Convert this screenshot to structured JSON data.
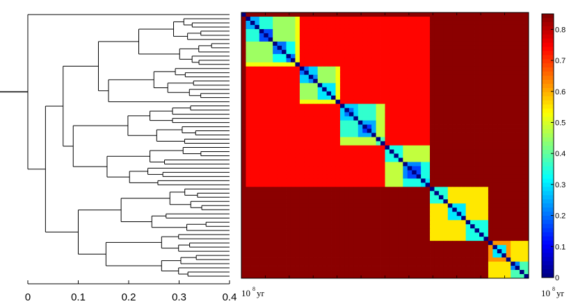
{
  "chart_data": [
    {
      "type": "dendrogram",
      "orientation": "root-left",
      "xlim": [
        0,
        0.4
      ],
      "xticks": [
        "0",
        "0.1",
        "0.2",
        "0.3",
        "0.4"
      ],
      "unit": {
        "base": "10",
        "exp": "8",
        "suffix": "yr"
      },
      "leaf_count": 64,
      "line_color": "#000000"
    },
    {
      "type": "heatmap",
      "size": 64,
      "colormap": "jet",
      "clim": [
        0,
        0.85
      ],
      "diagonal_value": 0.0,
      "blocks": [
        {
          "range": [
            0,
            1
          ],
          "value": 0.84
        },
        {
          "range": [
            1,
            42
          ],
          "value": 0.74
        },
        {
          "range": [
            1,
            22
          ],
          "value": 0.74
        },
        {
          "range": [
            1,
            13
          ],
          "value": 0.6
        },
        {
          "range": [
            13,
            22
          ],
          "value": 0.66
        },
        {
          "range": [
            22,
            42
          ],
          "value": 0.74
        },
        {
          "range": [
            1,
            7
          ],
          "value": 0.45
        },
        {
          "range": [
            7,
            12
          ],
          "value": 0.45
        },
        {
          "range": [
            12,
            13
          ],
          "value": 0.65
        },
        {
          "range": [
            13,
            19
          ],
          "value": 0.45
        },
        {
          "range": [
            19,
            22
          ],
          "value": 0.45
        },
        {
          "range": [
            1,
            4
          ],
          "value": 0.28
        },
        {
          "range": [
            4,
            7
          ],
          "value": 0.2
        },
        {
          "range": [
            7,
            12
          ],
          "value": 0.25
        },
        {
          "range": [
            13,
            17
          ],
          "value": 0.3
        },
        {
          "range": [
            17,
            19
          ],
          "value": 0.3
        },
        {
          "range": [
            22,
            32
          ],
          "value": 0.3
        },
        {
          "range": [
            32,
            42
          ],
          "value": 0.35
        },
        {
          "range": [
            22,
            26
          ],
          "value": 0.2
        },
        {
          "range": [
            26,
            29
          ],
          "value": 0.25
        },
        {
          "range": [
            29,
            32
          ],
          "value": 0.27
        },
        {
          "range": [
            32,
            38
          ],
          "value": 0.28
        },
        {
          "range": [
            38,
            42
          ],
          "value": 0.2
        },
        {
          "range": [
            22,
            42
          ],
          "value": 0.74
        },
        {
          "range": [
            42,
            64
          ],
          "value": 0.84
        },
        {
          "range": [
            42,
            52
          ],
          "value": 0.5
        },
        {
          "range": [
            52,
            64
          ],
          "value": 0.5
        },
        {
          "range": [
            42,
            46
          ],
          "value": 0.32
        },
        {
          "range": [
            46,
            52
          ],
          "value": 0.32
        },
        {
          "range": [
            52,
            58
          ],
          "value": 0.32
        },
        {
          "range": [
            58,
            64
          ],
          "value": 0.32
        },
        {
          "range": [
            56,
            60
          ],
          "value": 0.38
        },
        {
          "range": [
            59,
            63
          ],
          "value": 0.22
        },
        {
          "range": [
            63,
            64
          ],
          "value": 0.4
        },
        {
          "range": [
            54,
            57
          ],
          "value": 0.5
        },
        {
          "range": [
            64,
            70
          ],
          "value": 0.84
        }
      ]
    },
    {
      "type": "colorbar",
      "ticks": [
        "0",
        "0.1",
        "0.2",
        "0.3",
        "0.4",
        "0.5",
        "0.6",
        "0.7",
        "0.8"
      ],
      "clim": [
        0,
        0.85
      ],
      "unit": {
        "base": "10",
        "exp": "8",
        "suffix": "yr"
      }
    }
  ]
}
